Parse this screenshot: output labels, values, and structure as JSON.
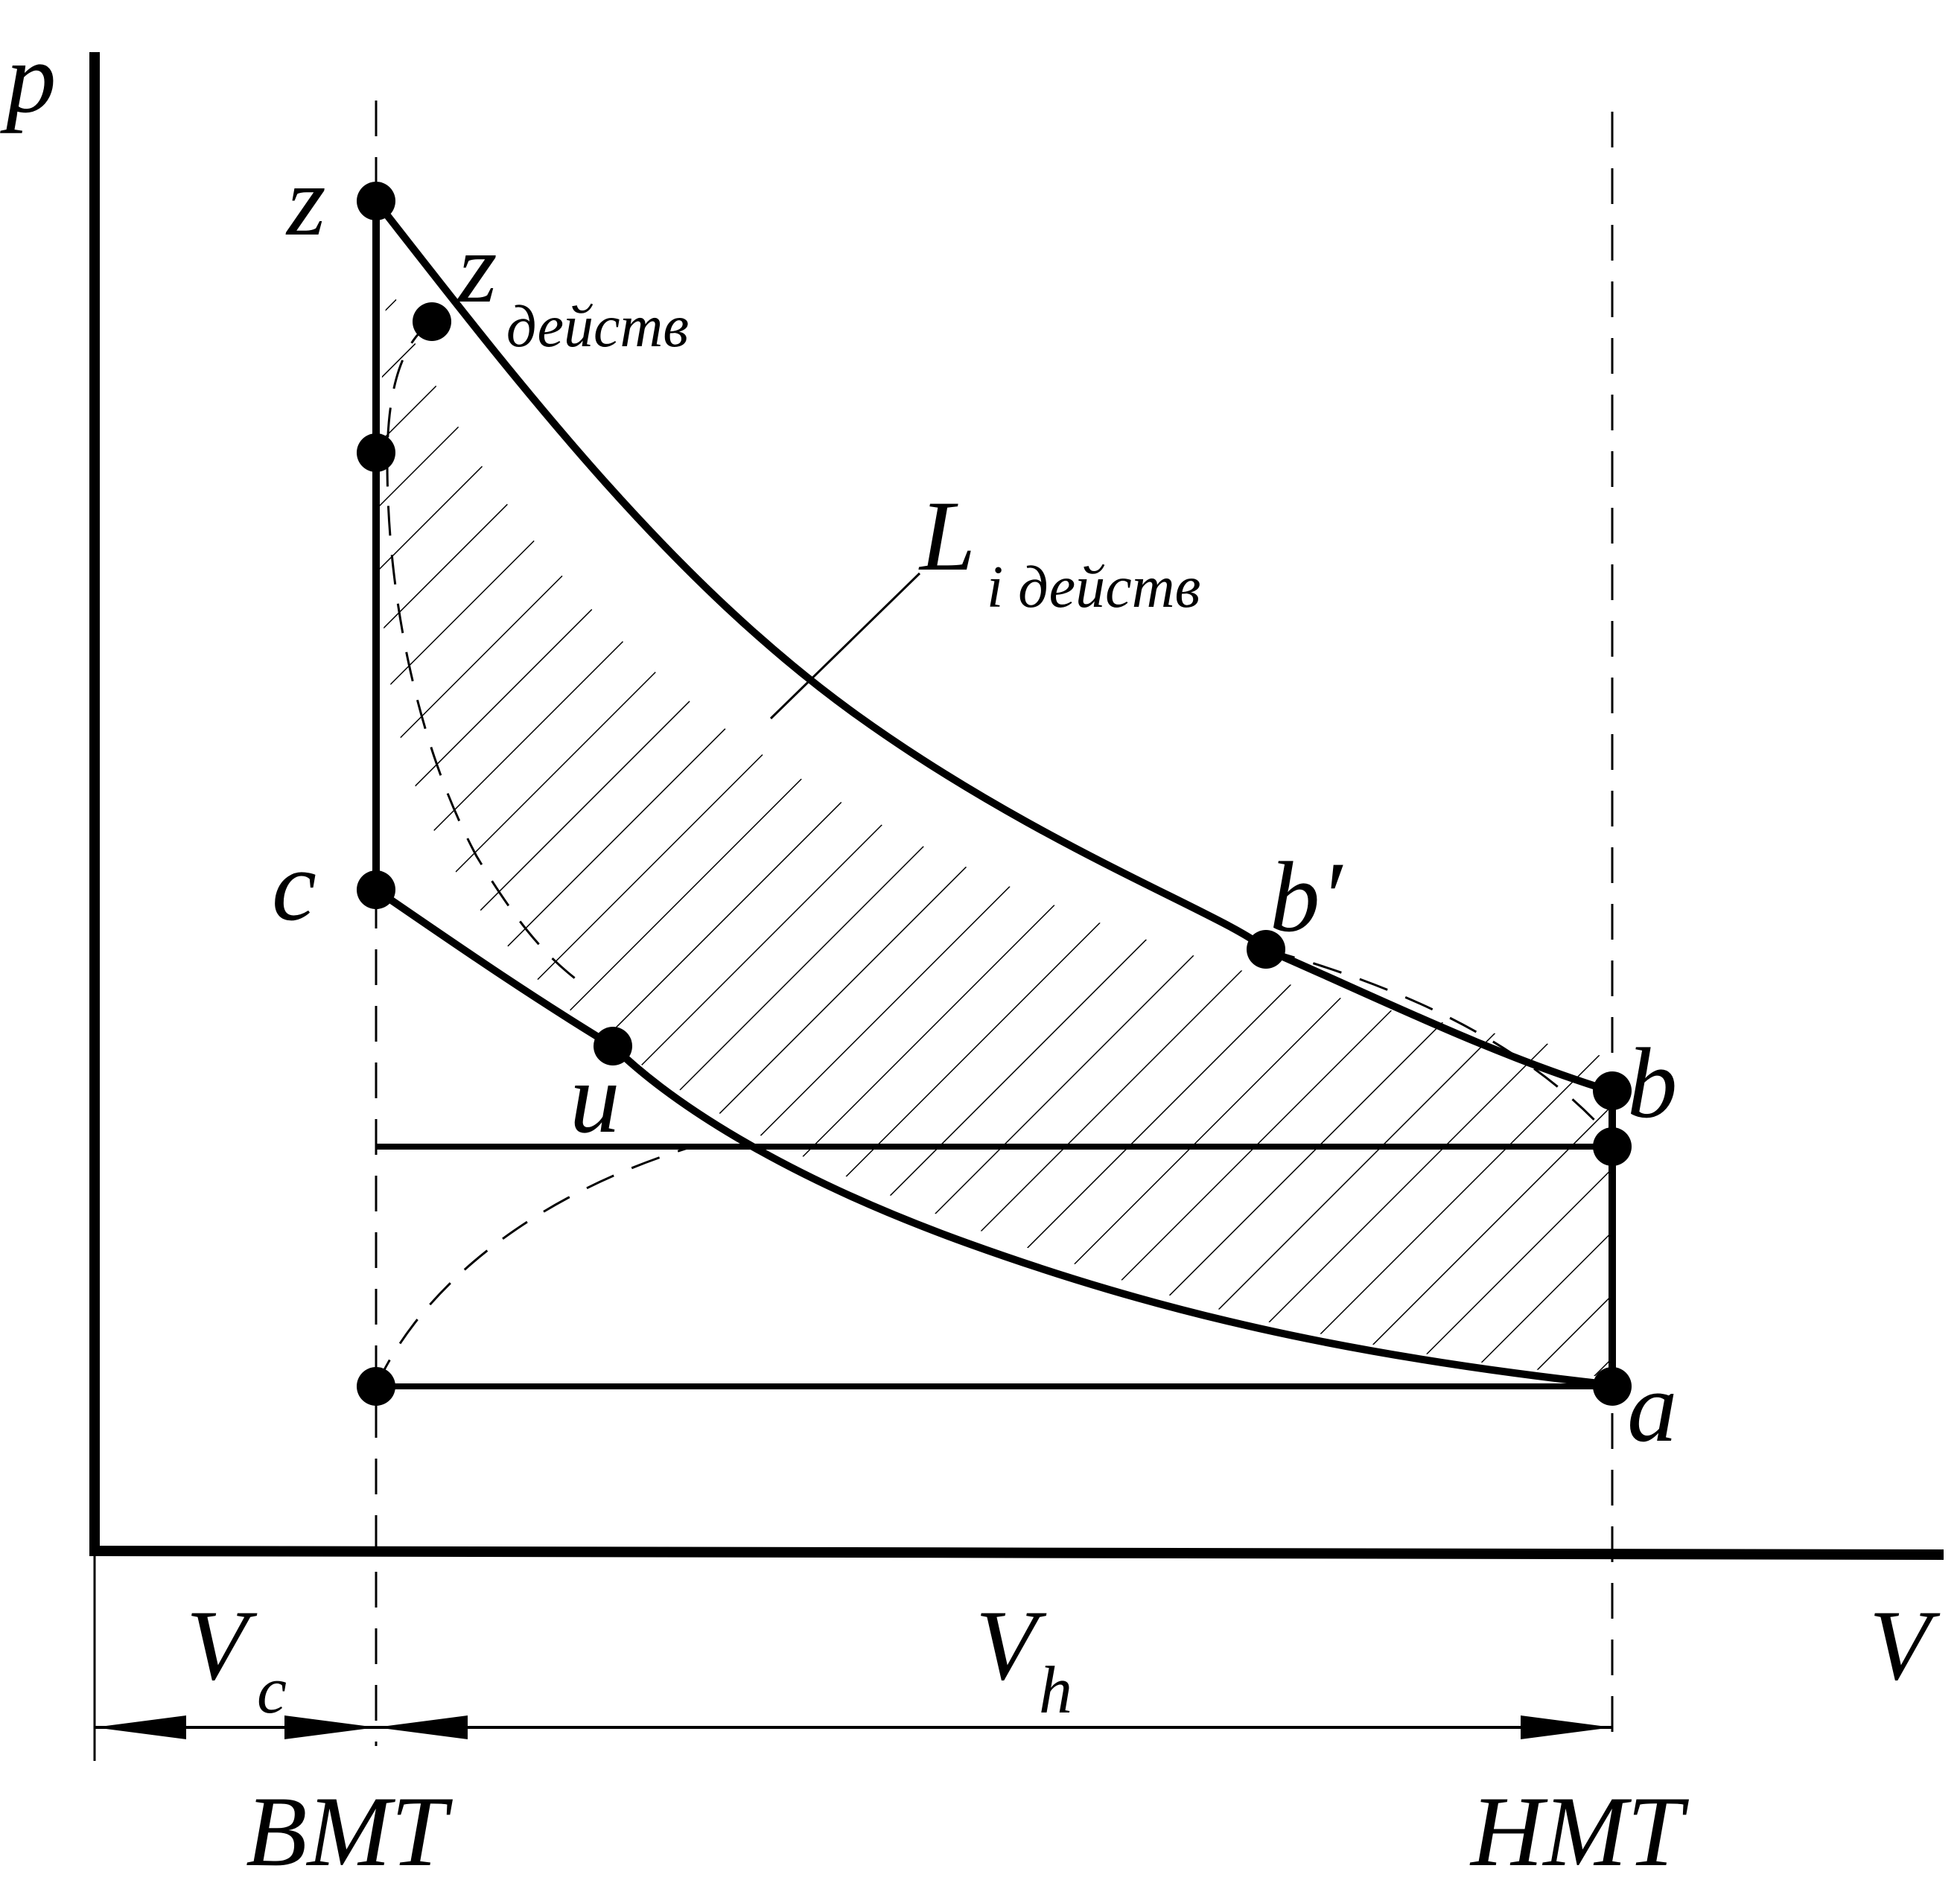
{
  "labels": {
    "p_axis": "p",
    "v_axis": "V",
    "z": "z",
    "z_actual_main": "z",
    "z_actual_sub": "действ",
    "work_main": "L",
    "work_sub": "i действ",
    "c": "c",
    "u": "u",
    "b_prime": "b′",
    "b": "b",
    "a": "a",
    "vc_main": "V",
    "vc_sub": "c",
    "vh_main": "V",
    "vh_sub": "h",
    "tdc": "ВМТ",
    "bdc": "НМТ"
  },
  "colors": {
    "ink": "#000000",
    "background": "#ffffff"
  }
}
